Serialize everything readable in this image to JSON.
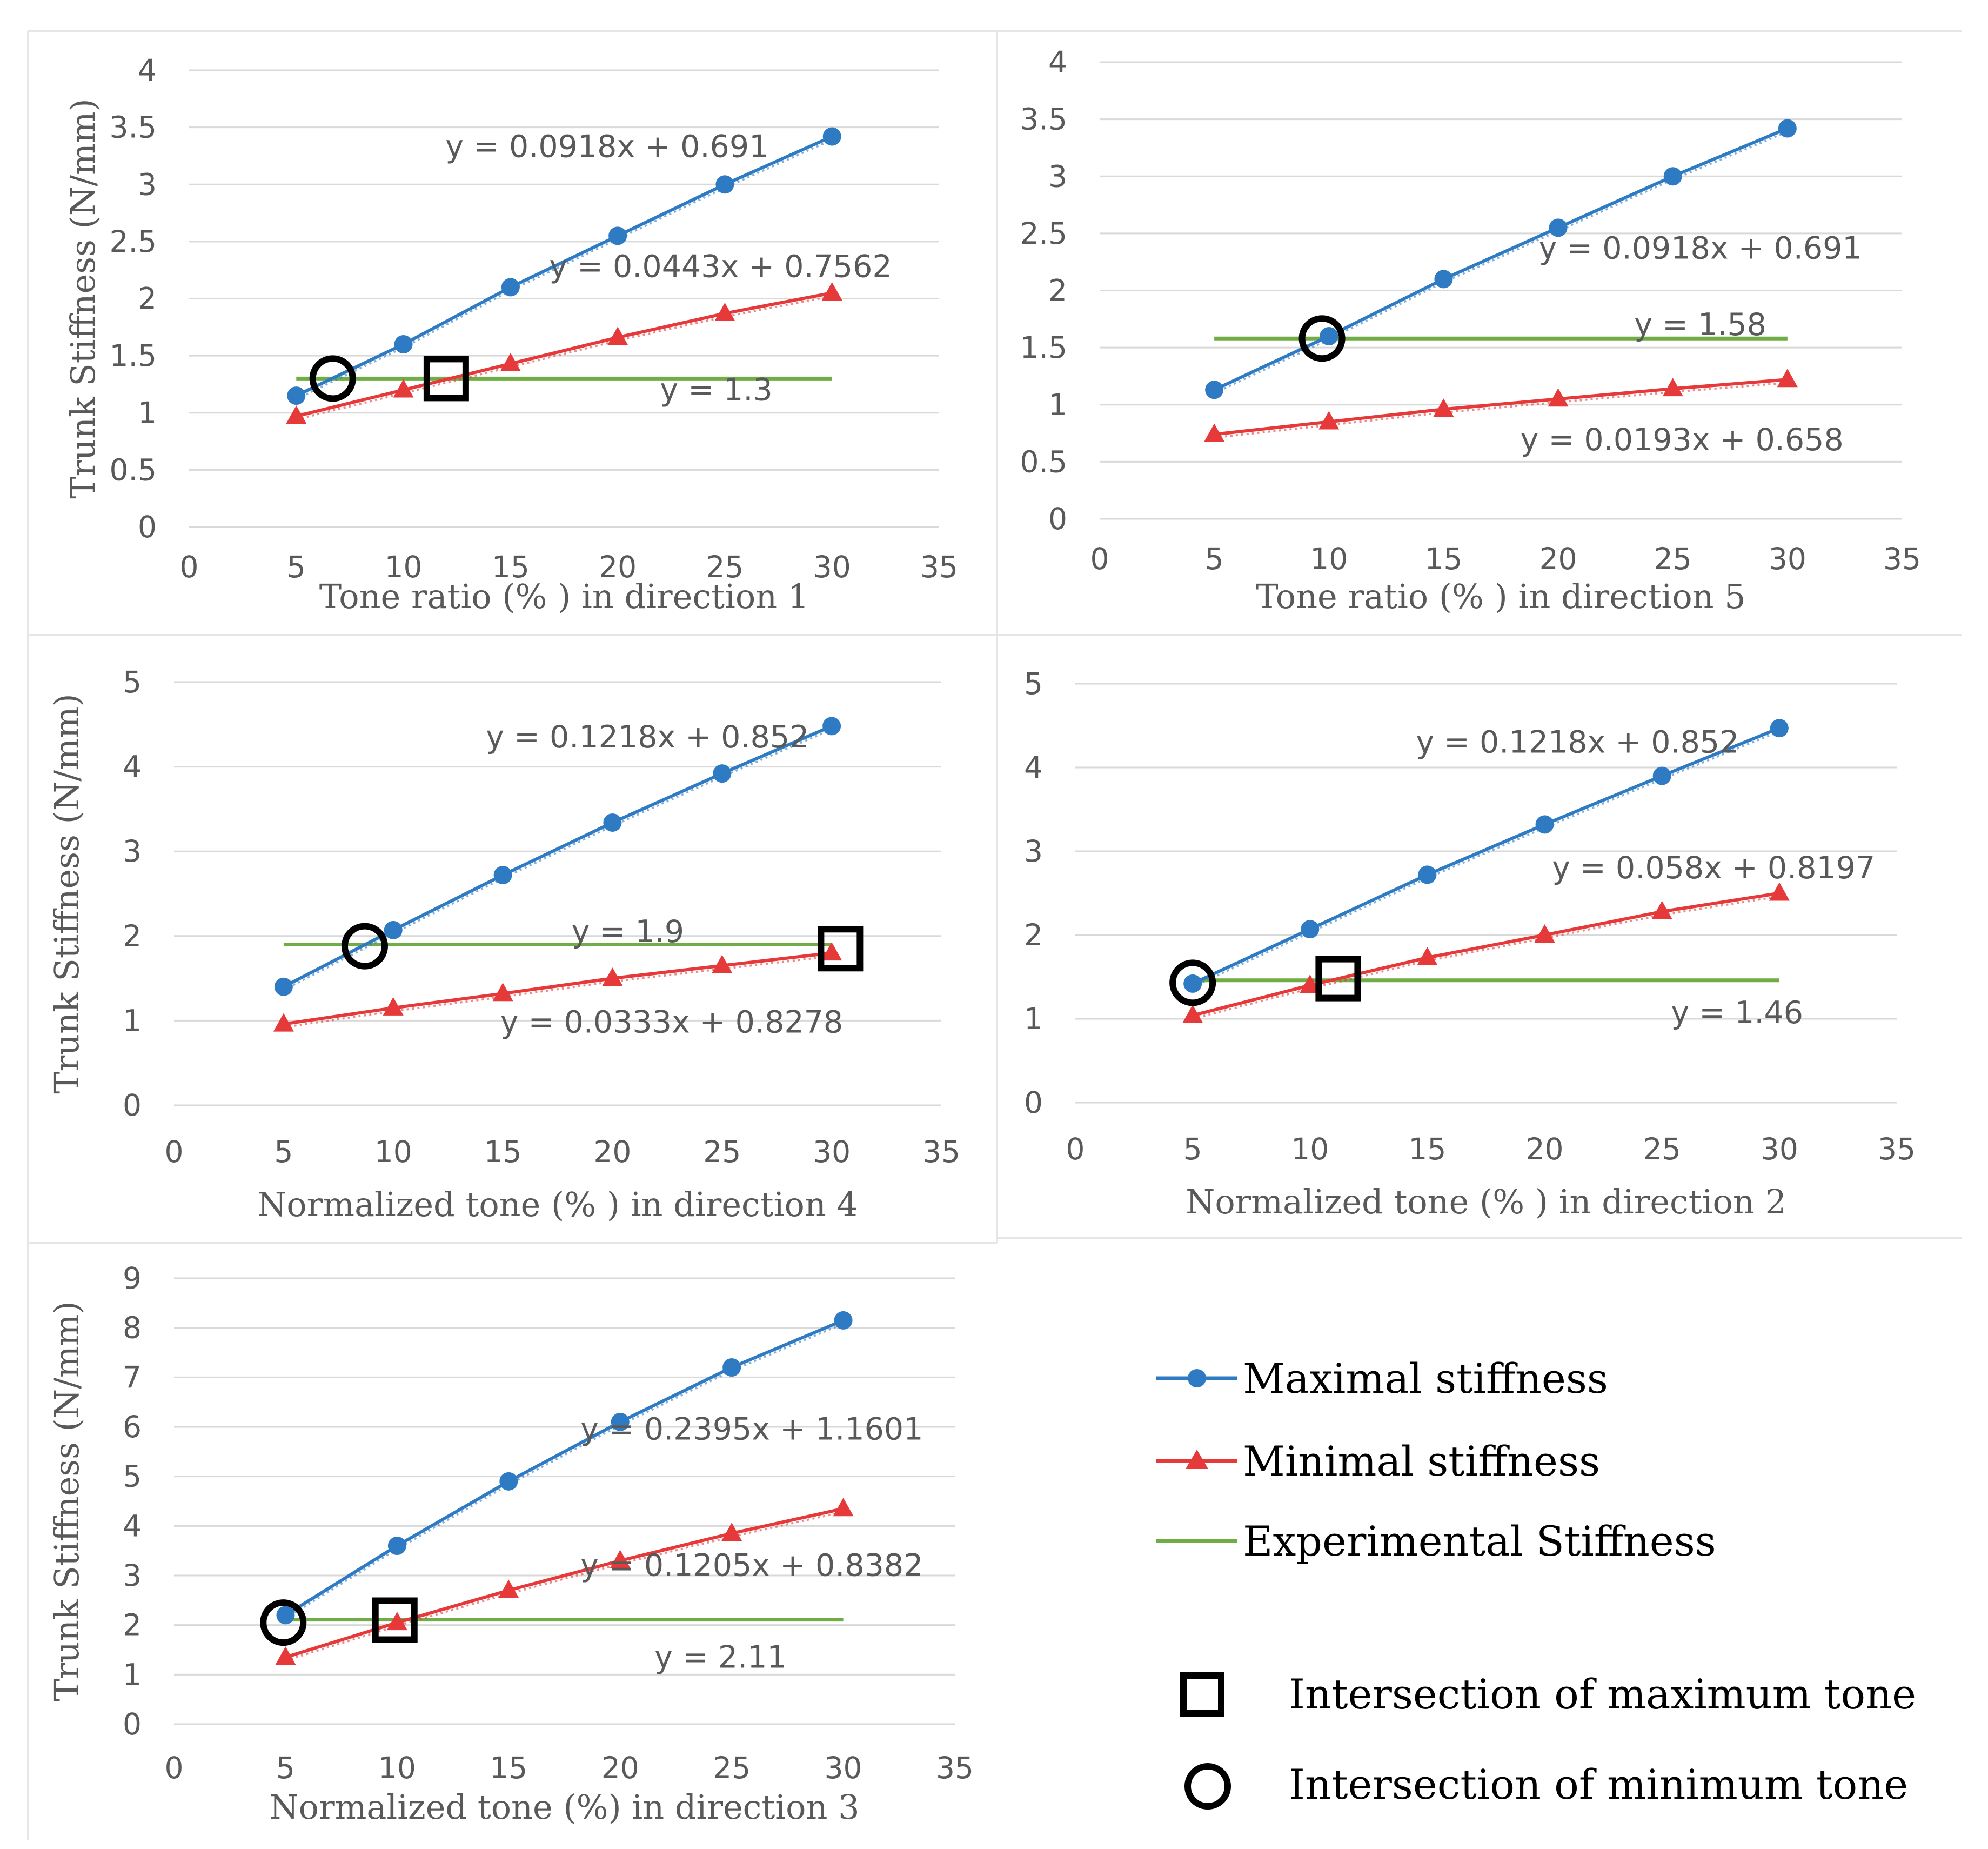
{
  "colors": {
    "max": "#2e7bc4",
    "min": "#e5393a",
    "exp": "#70ad47",
    "grid": "#d9d9d9",
    "text": "#595959",
    "marker": "#000000"
  },
  "legend": {
    "max_label": "Maximal stiffness",
    "min_label": "Minimal stiffness",
    "exp_label": "Experimental Stiffness",
    "square_label": "Intersection  of maximum  tone",
    "circle_label": "Intersection  of minimum  tone"
  },
  "chart_data": [
    {
      "id": "d1",
      "type": "line",
      "xlabel": "Tone ratio (% ) in direction 1",
      "ylabel": "Trunk Stiffness (N/mm)",
      "xlim": [
        0,
        35
      ],
      "xticks": [
        0,
        5,
        10,
        15,
        20,
        25,
        30,
        35
      ],
      "xtick_labels": [
        "0",
        "5",
        "10",
        "15",
        "20",
        "25",
        "30",
        "35"
      ],
      "ylim": [
        0,
        4
      ],
      "yticks": [
        0,
        0.5,
        1,
        1.5,
        2,
        2.5,
        3,
        3.5,
        4
      ],
      "ytick_labels": [
        "0",
        "0.5",
        "1",
        "1.5",
        "2",
        "2.5",
        "3",
        "3.5",
        "4"
      ],
      "series": [
        {
          "name": "Maximal stiffness",
          "x": [
            5,
            10,
            15,
            20,
            25,
            30
          ],
          "y": [
            1.15,
            1.6,
            2.1,
            2.55,
            3.0,
            3.42
          ]
        },
        {
          "name": "Minimal stiffness",
          "x": [
            5,
            10,
            15,
            20,
            25,
            30
          ],
          "y": [
            0.97,
            1.2,
            1.43,
            1.66,
            1.87,
            2.05
          ]
        },
        {
          "name": "Experimental Stiffness",
          "x": [
            5,
            30
          ],
          "y": [
            1.3,
            1.3
          ]
        }
      ],
      "equations": [
        {
          "text": "y = 0.0918x + 0.691",
          "x": 19.5,
          "y": 3.33,
          "anchor": "middle"
        },
        {
          "text": "y = 0.0443x + 0.7562",
          "x": 24.8,
          "y": 2.28,
          "anchor": "middle"
        },
        {
          "text": "y = 1.3",
          "x": 24.6,
          "y": 1.2,
          "anchor": "middle"
        }
      ],
      "circle": {
        "x": 6.7,
        "y": 1.3
      },
      "square": {
        "x": 12.0,
        "y": 1.3
      }
    },
    {
      "id": "d5",
      "type": "line",
      "xlabel": "Tone ratio (% ) in direction 5",
      "ylabel": "",
      "xlim": [
        0,
        35
      ],
      "xticks": [
        0,
        5,
        10,
        15,
        20,
        25,
        30,
        35
      ],
      "xtick_labels": [
        "0",
        "5",
        "10",
        "15",
        "20",
        "25",
        "30",
        "35"
      ],
      "ylim": [
        0,
        4
      ],
      "yticks": [
        0,
        0.5,
        1,
        1.5,
        2,
        2.5,
        3,
        3.5,
        4
      ],
      "ytick_labels": [
        "0",
        "0.5",
        "1",
        "1.5",
        "2",
        "2.5",
        "3",
        "3.5",
        "4"
      ],
      "series": [
        {
          "name": "Maximal stiffness",
          "x": [
            5,
            10,
            15,
            20,
            25,
            30
          ],
          "y": [
            1.13,
            1.6,
            2.1,
            2.55,
            3.0,
            3.42
          ]
        },
        {
          "name": "Minimal stiffness",
          "x": [
            5,
            10,
            15,
            20,
            25,
            30
          ],
          "y": [
            0.74,
            0.85,
            0.96,
            1.05,
            1.14,
            1.22
          ]
        },
        {
          "name": "Experimental Stiffness",
          "x": [
            5,
            30
          ],
          "y": [
            1.58,
            1.58
          ]
        }
      ],
      "equations": [
        {
          "text": "y = 0.0918x + 0.691",
          "x": 26.2,
          "y": 2.37,
          "anchor": "middle"
        },
        {
          "text": "y = 1.58",
          "x": 26.2,
          "y": 1.7,
          "anchor": "middle"
        },
        {
          "text": "y = 0.0193x + 0.658",
          "x": 25.4,
          "y": 0.69,
          "anchor": "middle"
        }
      ],
      "circle": {
        "x": 9.7,
        "y": 1.58
      },
      "square": null
    },
    {
      "id": "d4",
      "type": "line",
      "xlabel": "Normalized  tone (% ) in direction 4",
      "ylabel": "Trunk Stiffness (N/mm)",
      "xlim": [
        0,
        35
      ],
      "xticks": [
        0,
        5,
        10,
        15,
        20,
        25,
        30,
        35
      ],
      "xtick_labels": [
        "0",
        "5",
        "10",
        "15",
        "20",
        "25",
        "30",
        "35"
      ],
      "ylim": [
        0,
        5
      ],
      "yticks": [
        0,
        1,
        2,
        3,
        4,
        5
      ],
      "ytick_labels": [
        "0",
        "1",
        "2",
        "3",
        "4",
        "5"
      ],
      "series": [
        {
          "name": "Maximal stiffness",
          "x": [
            5,
            10,
            15,
            20,
            25,
            30
          ],
          "y": [
            1.4,
            2.07,
            2.72,
            3.34,
            3.92,
            4.48
          ]
        },
        {
          "name": "Minimal stiffness",
          "x": [
            5,
            10,
            15,
            20,
            25,
            30
          ],
          "y": [
            0.96,
            1.15,
            1.32,
            1.5,
            1.65,
            1.8
          ]
        },
        {
          "name": "Experimental Stiffness",
          "x": [
            5,
            30
          ],
          "y": [
            1.9,
            1.9
          ]
        }
      ],
      "equations": [
        {
          "text": "y = 0.1218x + 0.852",
          "x": 21.6,
          "y": 4.35,
          "anchor": "middle"
        },
        {
          "text": "y = 1.9",
          "x": 20.7,
          "y": 2.05,
          "anchor": "middle"
        },
        {
          "text": "y = 0.0333x + 0.8278",
          "x": 22.7,
          "y": 0.98,
          "anchor": "middle"
        }
      ],
      "circle": {
        "x": 8.7,
        "y": 1.88
      },
      "square": {
        "x": 30.4,
        "y": 1.85
      }
    },
    {
      "id": "d2",
      "type": "line",
      "xlabel": "Normalized  tone (% ) in direction 2",
      "ylabel": "",
      "xlim": [
        0,
        35
      ],
      "xticks": [
        0,
        5,
        10,
        15,
        20,
        25,
        30,
        35
      ],
      "xtick_labels": [
        "0",
        "5",
        "10",
        "15",
        "20",
        "25",
        "30",
        "35"
      ],
      "ylim": [
        0,
        5
      ],
      "yticks": [
        0,
        1,
        2,
        3,
        4,
        5
      ],
      "ytick_labels": [
        "0",
        "1",
        "2",
        "3",
        "4",
        "5"
      ],
      "series": [
        {
          "name": "Maximal stiffness",
          "x": [
            5,
            10,
            15,
            20,
            25,
            30
          ],
          "y": [
            1.42,
            2.07,
            2.72,
            3.32,
            3.9,
            4.47
          ]
        },
        {
          "name": "Minimal stiffness",
          "x": [
            5,
            10,
            15,
            20,
            25,
            30
          ],
          "y": [
            1.04,
            1.4,
            1.73,
            2.0,
            2.28,
            2.5
          ]
        },
        {
          "name": "Experimental Stiffness",
          "x": [
            5,
            30
          ],
          "y": [
            1.46,
            1.46
          ]
        }
      ],
      "equations": [
        {
          "text": "y = 0.1218x + 0.852",
          "x": 21.4,
          "y": 4.3,
          "anchor": "middle"
        },
        {
          "text": "y = 0.058x + 0.8197",
          "x": 27.2,
          "y": 2.8,
          "anchor": "middle"
        },
        {
          "text": "y = 1.46",
          "x": 28.2,
          "y": 1.07,
          "anchor": "middle"
        }
      ],
      "circle": {
        "x": 5.0,
        "y": 1.43
      },
      "square": {
        "x": 11.2,
        "y": 1.48
      }
    },
    {
      "id": "d3",
      "type": "line",
      "xlabel": "Normalized  tone (%) in direction 3",
      "ylabel": "Trunk Stiffness (N/mm)",
      "xlim": [
        0,
        35
      ],
      "xticks": [
        0,
        5,
        10,
        15,
        20,
        25,
        30,
        35
      ],
      "xtick_labels": [
        "0",
        "5",
        "10",
        "15",
        "20",
        "25",
        "30",
        "35"
      ],
      "ylim": [
        0,
        9
      ],
      "yticks": [
        0,
        1,
        2,
        3,
        4,
        5,
        6,
        7,
        8,
        9
      ],
      "ytick_labels": [
        "0",
        "1",
        "2",
        "3",
        "4",
        "5",
        "6",
        "7",
        "8",
        "9"
      ],
      "series": [
        {
          "name": "Maximal stiffness",
          "x": [
            5,
            10,
            15,
            20,
            25,
            30
          ],
          "y": [
            2.2,
            3.6,
            4.9,
            6.1,
            7.2,
            8.15
          ]
        },
        {
          "name": "Minimal stiffness",
          "x": [
            5,
            10,
            15,
            20,
            25,
            30
          ],
          "y": [
            1.35,
            2.05,
            2.7,
            3.3,
            3.85,
            4.35
          ]
        },
        {
          "name": "Experimental Stiffness",
          "x": [
            5,
            30
          ],
          "y": [
            2.11,
            2.11
          ]
        }
      ],
      "equations": [
        {
          "text": "y = 0.2395x + 1.1601",
          "x": 25.9,
          "y": 5.95,
          "anchor": "middle"
        },
        {
          "text": "y = 0.1205x + 0.8382",
          "x": 25.9,
          "y": 3.2,
          "anchor": "middle"
        },
        {
          "text": "y =  2.11",
          "x": 24.5,
          "y": 1.35,
          "anchor": "middle"
        }
      ],
      "circle": {
        "x": 4.9,
        "y": 2.05
      },
      "square": {
        "x": 9.9,
        "y": 2.1
      }
    }
  ]
}
